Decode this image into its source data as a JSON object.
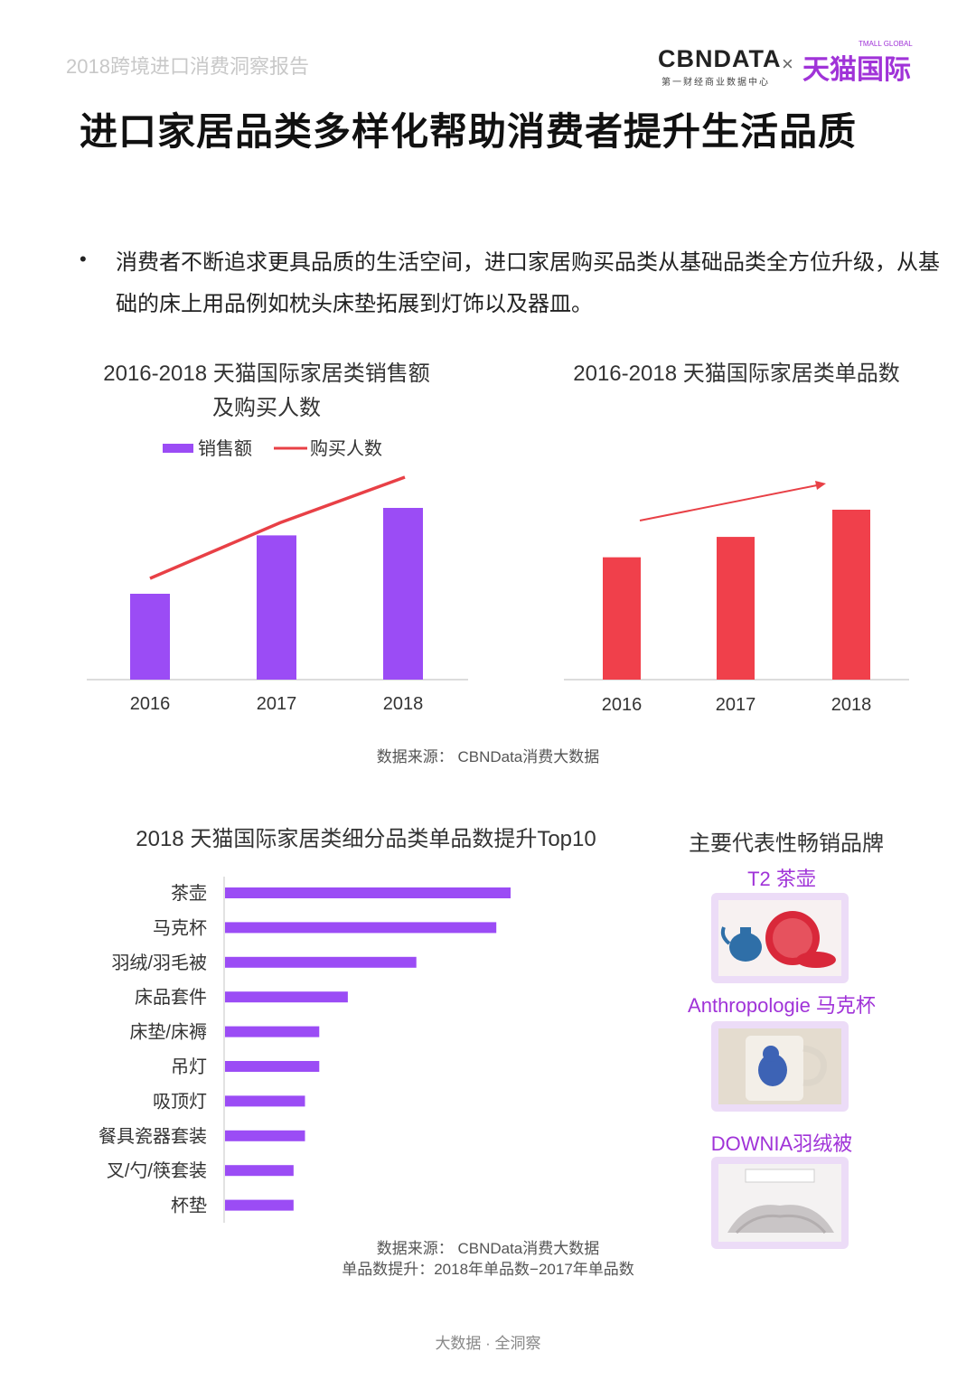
{
  "header": {
    "report_name": "2018跨境进口消费洞察报告",
    "logo_cbn": "CBNDATA",
    "logo_cbn_sub": "第一财经商业数据中心",
    "logo_times": "×",
    "logo_tmall": "天猫国际",
    "logo_tmall_sub": "TMALL GLOBAL"
  },
  "title": "进口家居品类多样化帮助消费者提升生活品质",
  "bullet": {
    "marker": "•",
    "text": "消费者不断追求更具品质的生活空间，进口家居购买品类从基础品类全方位升级，从基础的床上用品例如枕头床垫拓展到灯饰以及器皿。"
  },
  "chart1_title_line1": "2016-2018 天猫国际家居类销售额",
  "chart1_title_line2": "及购买人数",
  "chart2_title": "2016-2018 天猫国际家居类单品数",
  "chart3_title": "2018 天猫国际家居类细分品类单品数提升Top10",
  "source1": "数据来源：  CBNData消费大数据",
  "source2_line1": "数据来源：  CBNData消费大数据",
  "source2_line2": "单品数提升：2018年单品数−2017年单品数",
  "brands": {
    "title": "主要代表性畅销品牌",
    "items": [
      {
        "label": "T2 茶壶"
      },
      {
        "label": "Anthropologie 马克杯"
      },
      {
        "label": "DOWNIA羽绒被"
      }
    ]
  },
  "footer": "大数据  ·  全洞察",
  "colors": {
    "purple": "#9b4cf5",
    "red": "#f0404b",
    "line_red": "#e84046",
    "brand_purple": "#a033d8"
  },
  "chart_data": [
    {
      "type": "bar",
      "title": "2016-2018 天猫国际家居类销售额及购买人数",
      "categories": [
        "2016",
        "2017",
        "2018"
      ],
      "series": [
        {
          "name": "销售额",
          "type": "bar",
          "values": [
            50,
            84,
            100
          ]
        },
        {
          "name": "购买人数",
          "type": "line",
          "values": [
            60,
            82,
            100
          ]
        }
      ],
      "legend": "top-center",
      "grid": false
    },
    {
      "type": "bar",
      "title": "2016-2018 天猫国际家居类单品数",
      "categories": [
        "2016",
        "2017",
        "2018"
      ],
      "series": [
        {
          "name": "",
          "values": [
            72,
            84,
            100
          ]
        }
      ],
      "trend_arrow": true,
      "grid": false
    },
    {
      "type": "bar",
      "orientation": "horizontal",
      "title": "2018 天猫国际家居类细分品类单品数提升Top10",
      "categories": [
        "茶壶",
        "马克杯",
        "羽绒/羽毛被",
        "床品套件",
        "床垫/床褥",
        "吊灯",
        "吸顶灯",
        "餐具瓷器套装",
        "叉/勺/筷套装",
        "杯垫"
      ],
      "values": [
        100,
        95,
        67,
        43,
        33,
        33,
        28,
        28,
        24,
        24
      ],
      "grid": false
    }
  ]
}
